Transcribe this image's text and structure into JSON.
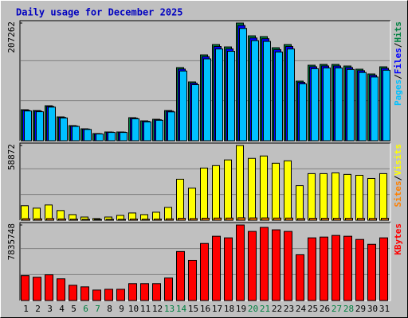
{
  "chart_data": [
    {
      "type": "bar",
      "title": "Daily usage for December 2025",
      "legend_separator": "/",
      "ylim": [
        0,
        207262
      ],
      "yticks": [
        207262
      ],
      "grid": true,
      "series": [
        {
          "name": "Pages",
          "color": "#00c0ff",
          "values": [
            52400,
            51000,
            59200,
            40100,
            25300,
            19900,
            11900,
            14600,
            14600,
            38700,
            33300,
            36000,
            50700,
            122800,
            98700,
            144200,
            161600,
            157500,
            197800,
            176300,
            175000,
            156300,
            161600,
            100200,
            126900,
            128200,
            128200,
            125600,
            120200,
            112200,
            124200
          ]
        },
        {
          "name": "Files",
          "color": "#0000ff",
          "values": [
            53500,
            52100,
            60400,
            41000,
            25900,
            20500,
            12300,
            15100,
            15100,
            39700,
            34200,
            36900,
            52100,
            126200,
            101400,
            148100,
            165900,
            161800,
            203100,
            181000,
            179700,
            160500,
            165900,
            102900,
            130300,
            131700,
            131700,
            128900,
            123400,
            115200,
            127500
          ]
        },
        {
          "name": "Hits",
          "color": "#008040",
          "values": [
            54600,
            53200,
            61600,
            42000,
            26600,
            21000,
            12600,
            15400,
            15400,
            40600,
            35000,
            37800,
            53200,
            128800,
            103600,
            151200,
            169400,
            165200,
            207262,
            184800,
            183400,
            163800,
            169400,
            105000,
            133000,
            134400,
            134400,
            131600,
            126000,
            117600,
            130200
          ]
        }
      ]
    },
    {
      "type": "bar",
      "legend_separator": "/",
      "ylim": [
        0,
        58872
      ],
      "yticks": [
        58872
      ],
      "grid": true,
      "series": [
        {
          "name": "Sites",
          "color": "#ff8000",
          "values": [
            1200,
            1100,
            1300,
            1000,
            800,
            700,
            600,
            700,
            700,
            900,
            800,
            900,
            1100,
            1500,
            1300,
            1600,
            1700,
            1700,
            1900,
            1800,
            1800,
            1700,
            1700,
            1300,
            1500,
            1500,
            1500,
            1500,
            1400,
            1400,
            1500
          ]
        },
        {
          "name": "Visits",
          "color": "#ffff00",
          "values": [
            11400,
            9500,
            12000,
            7600,
            4400,
            2500,
            1300,
            2500,
            3800,
            5700,
            4400,
            6300,
            10100,
            32300,
            25300,
            41100,
            43000,
            47500,
            58872,
            48700,
            50600,
            44900,
            46800,
            27200,
            36700,
            36700,
            37300,
            36100,
            35400,
            32900,
            36700
          ]
        }
      ]
    },
    {
      "type": "bar",
      "ylim": [
        0,
        7835748
      ],
      "yticks": [
        7835748
      ],
      "grid": true,
      "categories": [
        "1",
        "2",
        "3",
        "4",
        "5",
        "6",
        "7",
        "8",
        "9",
        "10",
        "11",
        "12",
        "13",
        "14",
        "15",
        "16",
        "17",
        "18",
        "19",
        "20",
        "21",
        "22",
        "23",
        "24",
        "25",
        "26",
        "27",
        "28",
        "29",
        "30",
        "31"
      ],
      "category_colors": [
        "#000000",
        "#000000",
        "#000000",
        "#000000",
        "#000000",
        "#008040",
        "#008040",
        "#000000",
        "#000000",
        "#000000",
        "#000000",
        "#000000",
        "#008040",
        "#008040",
        "#000000",
        "#000000",
        "#000000",
        "#000000",
        "#000000",
        "#008040",
        "#008040",
        "#000000",
        "#000000",
        "#000000",
        "#000000",
        "#000000",
        "#008040",
        "#008040",
        "#000000",
        "#000000",
        "#000000"
      ],
      "series": [
        {
          "name": "KBytes",
          "color": "#ff0000",
          "values": [
            2584000,
            2417000,
            2667000,
            2251000,
            1584000,
            1417000,
            1084000,
            1167000,
            1167000,
            1751000,
            1751000,
            1751000,
            2334000,
            5085000,
            4168000,
            5919000,
            6669000,
            6502000,
            7835748,
            7169000,
            7586000,
            7336000,
            7169000,
            4751000,
            6502000,
            6585000,
            6752000,
            6669000,
            6335000,
            5835000,
            6502000
          ]
        }
      ]
    }
  ]
}
